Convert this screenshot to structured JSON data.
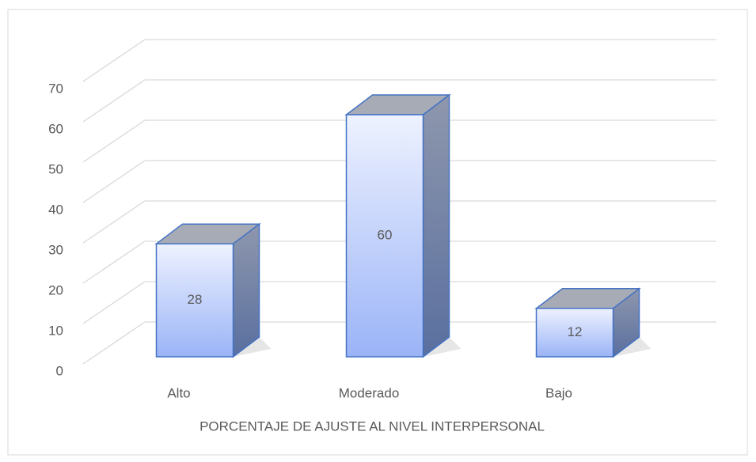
{
  "chart_data": {
    "type": "bar3d",
    "categories": [
      "Alto",
      "Moderado",
      "Bajo"
    ],
    "values": [
      28,
      60,
      12
    ],
    "x_label": "PORCENTAJE DE AJUSTE AL NIVEL INTERPERSONAL",
    "color": "#4472c4",
    "ylim": [
      0,
      70
    ],
    "yticks": [
      0,
      10,
      20,
      30,
      40,
      50,
      60,
      70
    ],
    "grid": true
  }
}
